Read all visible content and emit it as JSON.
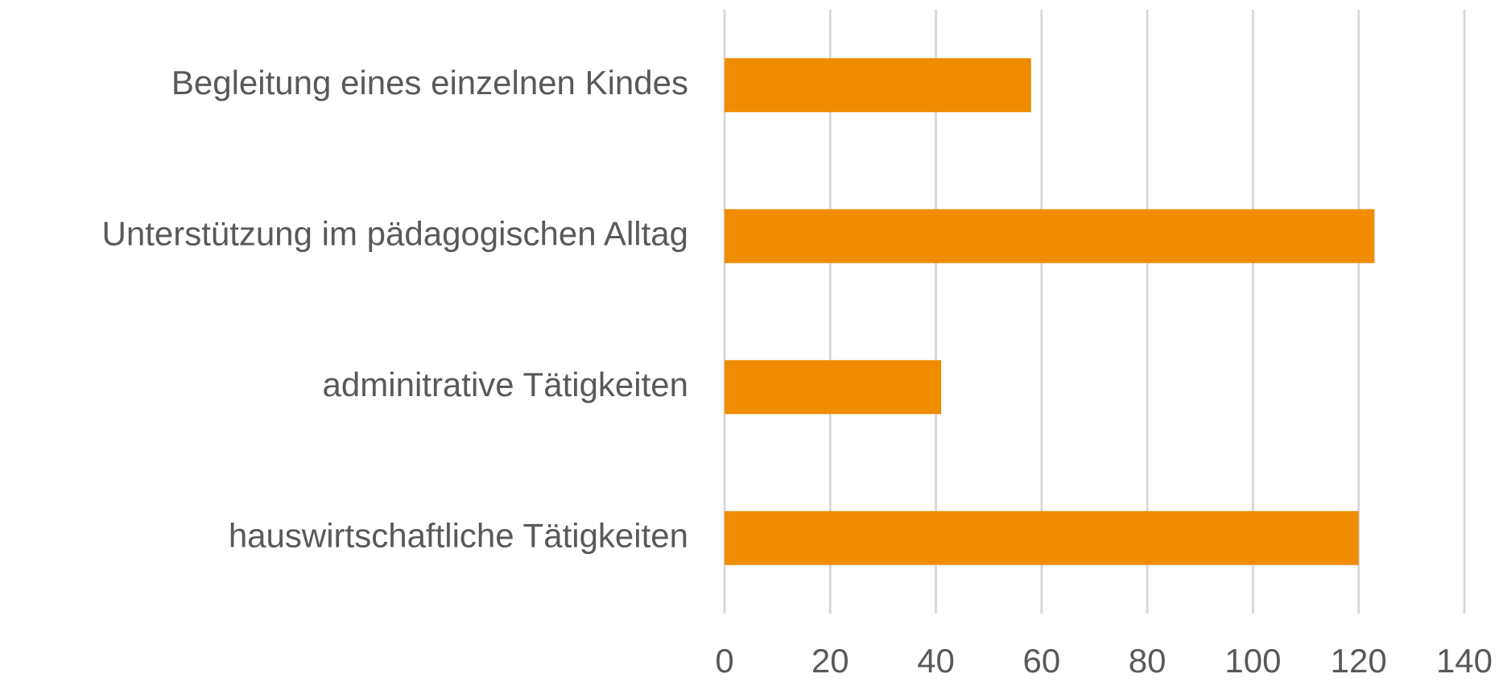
{
  "chart_data": {
    "type": "bar",
    "orientation": "horizontal",
    "categories": [
      "Begleitung eines einzelnen Kindes",
      "Unterstützung im pädagogischen Alltag",
      "adminitrative Tätigkeiten",
      "hauswirtschaftliche Tätigkeiten"
    ],
    "values": [
      58,
      123,
      41,
      120
    ],
    "color": "#ef8c00",
    "xlim": [
      0,
      140
    ],
    "xticks": [
      0,
      20,
      40,
      60,
      80,
      100,
      120,
      140
    ],
    "grid": true
  }
}
